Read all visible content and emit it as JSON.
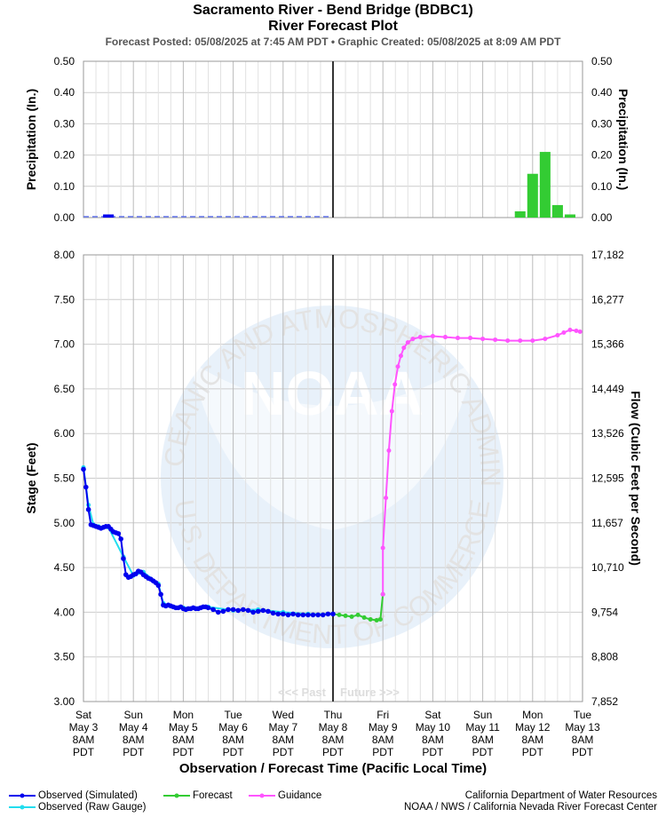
{
  "title": "Sacramento River - Bend Bridge (BDBC1)",
  "subtitle": "River Forecast Plot",
  "info_line": "Forecast Posted: 05/08/2025 at 7:45 AM PDT  •  Graphic Created: 05/08/2025 at 8:09 AM PDT",
  "past_label": "<<< Past",
  "future_label": "Future >>>",
  "watermark": {
    "logo_text": "NOAA",
    "ring_text_top": "NATIONAL OCEANIC AND ATMOSPHERIC ADMINISTRATION",
    "ring_text_bottom": "U.S. DEPARTMENT OF COMMERCE"
  },
  "colors": {
    "observed_simulated": "#0000ee",
    "observed_raw": "#22ddee",
    "forecast": "#33cc33",
    "guidance": "#ff55ff",
    "grid": "#cccccc",
    "now_line": "#333333"
  },
  "legend": {
    "observed_simulated": "Observed (Simulated)",
    "observed_raw": "Observed (Raw Gauge)",
    "forecast": "Forecast",
    "guidance": "Guidance"
  },
  "footer": {
    "line1": "California Department of Water Resources",
    "line2": "NOAA / NWS / California Nevada River Forecast Center"
  },
  "chart_data": [
    {
      "type": "bar",
      "ylabel": "Precipitation (In.)",
      "ylabel_right": "Precipitation (In.)",
      "ylim": [
        0,
        0.5
      ],
      "yticks": [
        "0.00",
        "0.10",
        "0.20",
        "0.30",
        "0.40",
        "0.50"
      ],
      "xlim_days": [
        0,
        10
      ],
      "observed_bars": [
        {
          "t": 0.5,
          "v": 0.01
        }
      ],
      "observed_baseline": [
        0,
        5
      ],
      "forecast_bars": [
        {
          "t": 8.75,
          "v": 0.02
        },
        {
          "t": 9.0,
          "v": 0.14
        },
        {
          "t": 9.25,
          "v": 0.21
        },
        {
          "t": 9.5,
          "v": 0.04
        },
        {
          "t": 9.75,
          "v": 0.01
        }
      ],
      "grid": true
    },
    {
      "type": "line",
      "ylabel": "Stage (Feet)",
      "ylabel_right": "Flow (Cubic Feet per Second)",
      "xlabel": "Observation / Forecast Time (Pacific Local Time)",
      "ylim": [
        3.0,
        8.0
      ],
      "yticks": [
        "3.00",
        "3.50",
        "4.00",
        "4.50",
        "5.00",
        "5.50",
        "6.00",
        "6.50",
        "7.00",
        "7.50",
        "8.00"
      ],
      "yticks_right": [
        "7,852",
        "8,808",
        "9,754",
        "10,710",
        "11,657",
        "12,595",
        "13,526",
        "14,449",
        "15,366",
        "16,277",
        "17,182"
      ],
      "x_ticks": [
        {
          "day": "Sat",
          "date": "May 3",
          "time": "8AM",
          "tz": "PDT"
        },
        {
          "day": "Sun",
          "date": "May 4",
          "time": "8AM",
          "tz": "PDT"
        },
        {
          "day": "Mon",
          "date": "May 5",
          "time": "8AM",
          "tz": "PDT"
        },
        {
          "day": "Tue",
          "date": "May 6",
          "time": "8AM",
          "tz": "PDT"
        },
        {
          "day": "Wed",
          "date": "May 7",
          "time": "8AM",
          "tz": "PDT"
        },
        {
          "day": "Thu",
          "date": "May 8",
          "time": "8AM",
          "tz": "PDT"
        },
        {
          "day": "Fri",
          "date": "May 9",
          "time": "8AM",
          "tz": "PDT"
        },
        {
          "day": "Sat",
          "date": "May 10",
          "time": "8AM",
          "tz": "PDT"
        },
        {
          "day": "Sun",
          "date": "May 11",
          "time": "8AM",
          "tz": "PDT"
        },
        {
          "day": "Mon",
          "date": "May 12",
          "time": "8AM",
          "tz": "PDT"
        },
        {
          "day": "Tue",
          "date": "May 13",
          "time": "8AM",
          "tz": "PDT"
        }
      ],
      "now_day": 5.0,
      "series": [
        {
          "name": "Observed (Simulated)",
          "key": "observed_simulated",
          "x": [
            0.0,
            0.05,
            0.1,
            0.15,
            0.2,
            0.25,
            0.3,
            0.35,
            0.4,
            0.45,
            0.5,
            0.55,
            0.6,
            0.65,
            0.7,
            0.75,
            0.8,
            0.85,
            0.9,
            0.95,
            1.0,
            1.05,
            1.1,
            1.15,
            1.2,
            1.25,
            1.3,
            1.35,
            1.4,
            1.45,
            1.5,
            1.55,
            1.6,
            1.65,
            1.7,
            1.75,
            1.8,
            1.85,
            1.9,
            1.95,
            2.0,
            2.05,
            2.1,
            2.15,
            2.2,
            2.25,
            2.3,
            2.35,
            2.4,
            2.45,
            2.5,
            2.6,
            2.7,
            2.8,
            2.9,
            3.0,
            3.1,
            3.2,
            3.3,
            3.4,
            3.5,
            3.6,
            3.7,
            3.8,
            3.9,
            4.0,
            4.1,
            4.2,
            4.3,
            4.4,
            4.5,
            4.6,
            4.7,
            4.8,
            4.9,
            5.0
          ],
          "y": [
            5.6,
            5.4,
            5.15,
            4.98,
            4.97,
            4.96,
            4.95,
            4.94,
            4.95,
            4.96,
            4.96,
            4.93,
            4.9,
            4.89,
            4.88,
            4.82,
            4.6,
            4.42,
            4.39,
            4.4,
            4.42,
            4.43,
            4.46,
            4.45,
            4.42,
            4.4,
            4.38,
            4.37,
            4.35,
            4.33,
            4.3,
            4.2,
            4.08,
            4.07,
            4.08,
            4.07,
            4.06,
            4.05,
            4.05,
            4.06,
            4.04,
            4.03,
            4.04,
            4.04,
            4.05,
            4.04,
            4.04,
            4.05,
            4.06,
            4.06,
            4.05,
            4.03,
            4.0,
            4.01,
            4.03,
            4.03,
            4.02,
            4.03,
            4.02,
            4.0,
            4.01,
            4.02,
            4.01,
            3.99,
            3.98,
            3.98,
            3.97,
            3.98,
            3.97,
            3.97,
            3.97,
            3.97,
            3.97,
            3.97,
            3.98,
            3.98
          ]
        },
        {
          "name": "Observed (Raw Gauge)",
          "key": "observed_raw",
          "x": [
            0.0,
            0.1,
            0.2,
            0.3,
            0.5,
            0.8,
            1.0,
            1.2,
            1.5,
            1.6,
            1.8,
            2.0,
            2.5,
            3.0,
            3.5,
            4.0,
            4.5,
            5.0
          ],
          "y": [
            5.62,
            5.2,
            4.98,
            4.96,
            4.95,
            4.62,
            4.41,
            4.45,
            4.32,
            4.1,
            4.06,
            4.05,
            4.06,
            4.02,
            4.03,
            4.0,
            3.98,
            3.98
          ]
        },
        {
          "name": "Forecast",
          "key": "forecast",
          "x": [
            5.0,
            5.125,
            5.25,
            5.375,
            5.5,
            5.625,
            5.75,
            5.875,
            5.95,
            6.0
          ],
          "y": [
            3.98,
            3.97,
            3.96,
            3.95,
            3.97,
            3.94,
            3.92,
            3.91,
            3.92,
            4.2
          ]
        },
        {
          "name": "Guidance",
          "key": "guidance",
          "x": [
            6.0,
            6.0,
            6.06,
            6.12,
            6.18,
            6.24,
            6.3,
            6.36,
            6.42,
            6.5,
            6.6,
            6.75,
            7.0,
            7.25,
            7.5,
            7.75,
            8.0,
            8.25,
            8.5,
            8.75,
            9.0,
            9.25,
            9.5,
            9.625,
            9.75,
            9.875,
            9.95
          ],
          "y": [
            4.2,
            4.72,
            5.28,
            5.81,
            6.25,
            6.55,
            6.75,
            6.87,
            6.96,
            7.02,
            7.06,
            7.08,
            7.09,
            7.08,
            7.07,
            7.07,
            7.06,
            7.05,
            7.04,
            7.04,
            7.04,
            7.06,
            7.1,
            7.13,
            7.16,
            7.15,
            7.14
          ]
        }
      ],
      "grid": true
    }
  ]
}
